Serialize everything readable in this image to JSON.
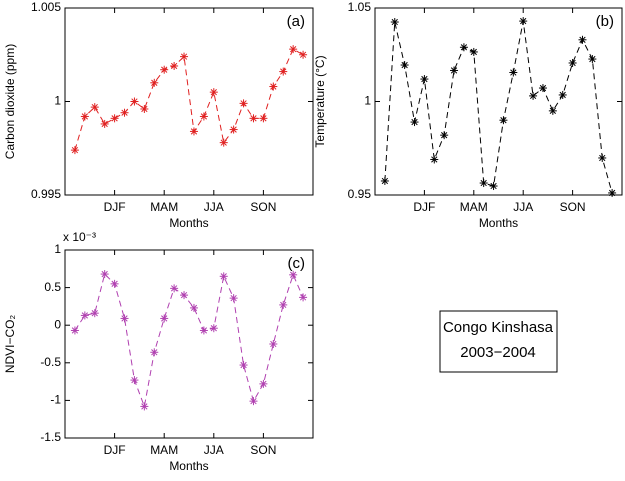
{
  "chart_data": [
    {
      "type": "line",
      "panel_label": "(a)",
      "xlabel": "Months",
      "ylabel": "Carbon dioxide (ppm)",
      "x": [
        1,
        2,
        3,
        4,
        5,
        6,
        7,
        8,
        9,
        10,
        11,
        12,
        13,
        14,
        15,
        16,
        17,
        18,
        19,
        20,
        21,
        22,
        23,
        24
      ],
      "xlim": [
        0,
        25
      ],
      "xticks": [
        {
          "value": 5,
          "label": "DJF"
        },
        {
          "value": 10,
          "label": "MAM"
        },
        {
          "value": 15,
          "label": "JJA"
        },
        {
          "value": 20,
          "label": "SON"
        }
      ],
      "ylim": [
        0.995,
        1.005
      ],
      "yticks": [
        0.995,
        1,
        1.005
      ],
      "series": [
        {
          "color": "#e02020",
          "values": [
            0.9974,
            0.9992,
            0.9997,
            0.9988,
            0.9991,
            0.9994,
            1.0,
            0.9996,
            1.001,
            1.0017,
            1.0019,
            1.0024,
            0.9984,
            0.9992,
            1.0005,
            0.9978,
            0.9985,
            0.9999,
            0.9991,
            0.9991,
            1.0008,
            1.0016,
            1.0028,
            1.0025
          ]
        }
      ]
    },
    {
      "type": "line",
      "panel_label": "(b)",
      "xlabel": "Months",
      "ylabel": "Temperature (°C)",
      "x": [
        1,
        2,
        3,
        4,
        5,
        6,
        7,
        8,
        9,
        10,
        11,
        12,
        13,
        14,
        15,
        16,
        17,
        18,
        19,
        20,
        21,
        22,
        23,
        24
      ],
      "xlim": [
        0,
        25
      ],
      "xticks": [
        {
          "value": 5,
          "label": "DJF"
        },
        {
          "value": 10,
          "label": "MAM"
        },
        {
          "value": 15,
          "label": "JJA"
        },
        {
          "value": 20,
          "label": "SON"
        }
      ],
      "ylim": [
        0.95,
        1.05
      ],
      "yticks": [
        0.95,
        1,
        1.05
      ],
      "series": [
        {
          "color": "#000000",
          "values": [
            0.9575,
            1.0425,
            1.0195,
            0.989,
            1.012,
            0.969,
            0.982,
            1.0166,
            1.029,
            1.0265,
            0.9564,
            0.9548,
            0.99,
            1.0155,
            1.043,
            1.003,
            1.0072,
            0.995,
            1.0035,
            1.0206,
            1.033,
            1.0227,
            0.9698,
            0.9511
          ]
        }
      ]
    },
    {
      "type": "line",
      "panel_label": "(c)",
      "xlabel": "Months",
      "ylabel": "NDVI−CO₂",
      "y_multiplier": "x 10⁻³",
      "x": [
        1,
        2,
        3,
        4,
        5,
        6,
        7,
        8,
        9,
        10,
        11,
        12,
        13,
        14,
        15,
        16,
        17,
        18,
        19,
        20,
        21,
        22,
        23,
        24
      ],
      "xlim": [
        0,
        25
      ],
      "xticks": [
        {
          "value": 5,
          "label": "DJF"
        },
        {
          "value": 10,
          "label": "MAM"
        },
        {
          "value": 15,
          "label": "JJA"
        },
        {
          "value": 20,
          "label": "SON"
        }
      ],
      "ylim": [
        -1.5,
        1
      ],
      "yticks": [
        -1.5,
        -1,
        -0.5,
        0,
        0.5,
        1
      ],
      "series": [
        {
          "color": "#b040b0",
          "values": [
            -0.07,
            0.13,
            0.16,
            0.68,
            0.55,
            0.09,
            -0.73,
            -1.08,
            -0.36,
            0.09,
            0.49,
            0.4,
            0.23,
            -0.07,
            -0.04,
            0.65,
            0.36,
            -0.53,
            -1.01,
            -0.78,
            -0.25,
            0.27,
            0.67,
            0.37
          ]
        }
      ]
    }
  ],
  "text_box": {
    "lines": [
      "Congo Kinshasa",
      "2003−2004"
    ]
  }
}
